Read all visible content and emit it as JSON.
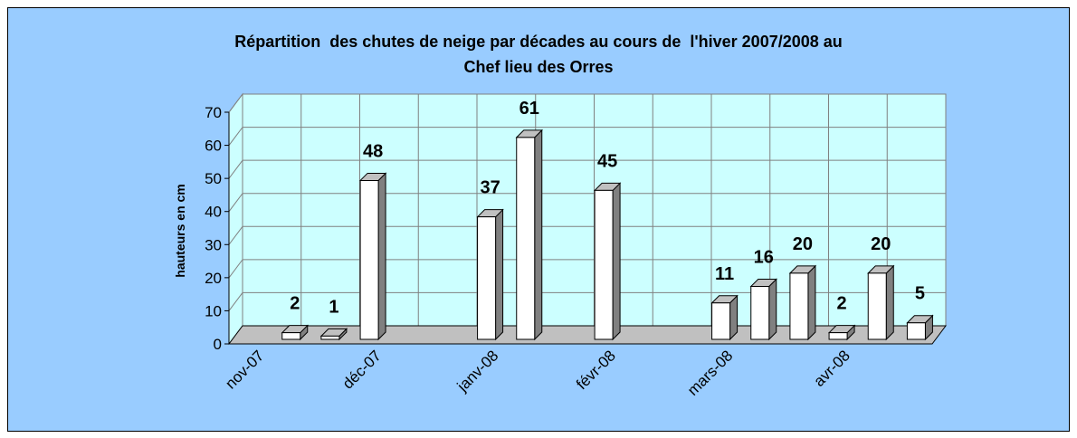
{
  "chart_data": {
    "type": "bar3d",
    "title": [
      "Répartition  des chutes de neige par décades au cours de  l'hiver 2007/2008 au",
      "Chef lieu des Orres"
    ],
    "y_label": "hauteurs en cm",
    "categories": [
      "nov-07",
      null,
      null,
      "déc-07",
      null,
      null,
      "janv-08",
      null,
      null,
      "févr-08",
      null,
      null,
      "mars-08",
      null,
      null,
      "avr-08",
      null,
      null
    ],
    "values": [
      null,
      2,
      1,
      48,
      null,
      null,
      37,
      61,
      null,
      45,
      null,
      null,
      11,
      16,
      20,
      2,
      20,
      5
    ],
    "color": "#ffffff",
    "ylim": [
      0,
      70
    ],
    "yticks": [
      0,
      10,
      20,
      30,
      40,
      50,
      60,
      70
    ],
    "grid": true
  }
}
